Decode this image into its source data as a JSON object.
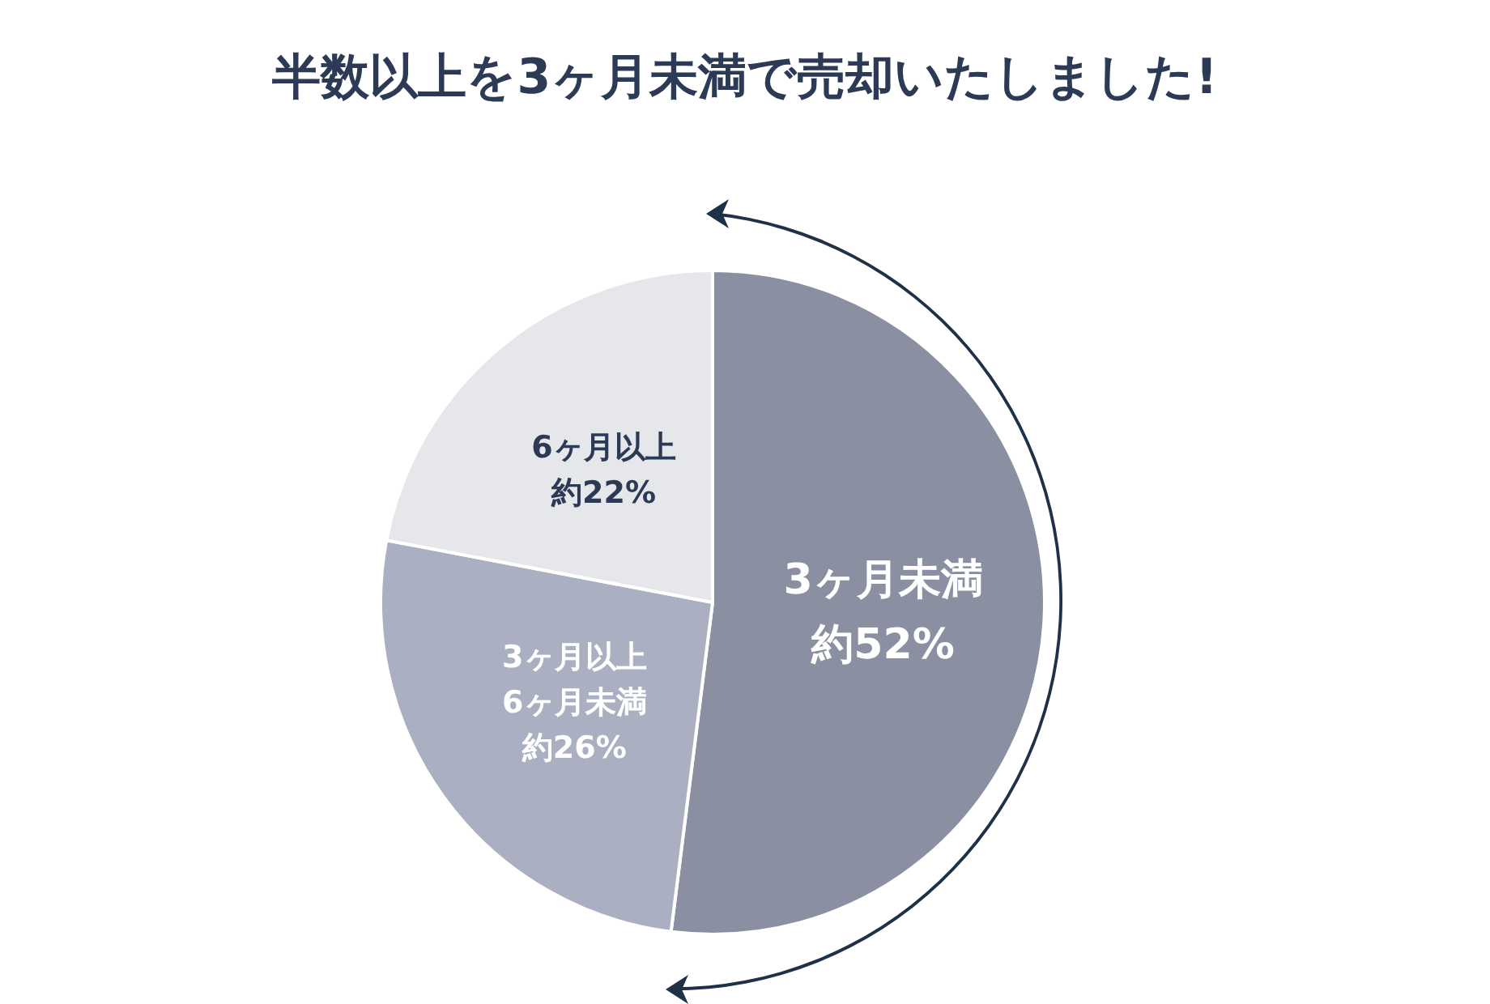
{
  "chart_data": {
    "type": "pie",
    "title": "半数以上を3ヶ月未満で売却いたしました!",
    "categories": [
      "3ヶ月未満",
      "3ヶ月以上\n6ヶ月未満",
      "6ヶ月以上"
    ],
    "values": [
      52,
      26,
      22
    ],
    "value_labels": [
      "約52%",
      "約26%",
      "約22%"
    ],
    "colors": [
      "#8a90a2",
      "#aab0c1",
      "#e6e7eb"
    ],
    "legend": false
  }
}
